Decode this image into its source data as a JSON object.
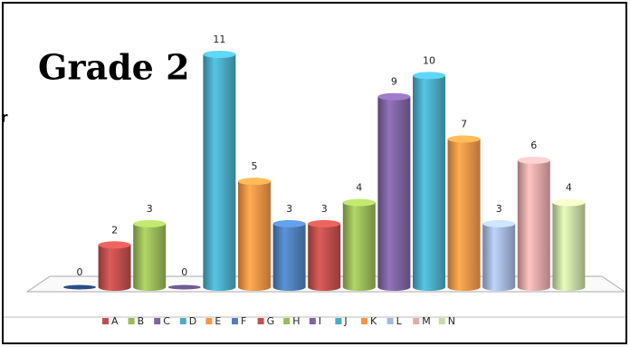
{
  "chart_data": {
    "type": "bar",
    "title": "Grade 2",
    "side_text": "ir",
    "categories": [
      null,
      "A",
      "B",
      "C",
      "D",
      "E",
      "F",
      "G",
      "H",
      "I",
      "J",
      "K",
      "L",
      "M",
      "N"
    ],
    "values": [
      0,
      2,
      3,
      0,
      11,
      5,
      3,
      3,
      4,
      9,
      10,
      7,
      3,
      6,
      4
    ],
    "colors": [
      "#2f5597",
      "#c0504d",
      "#9bbb59",
      "#8064a2",
      "#4bacc6",
      "#f79646",
      "#4f81bd",
      "#c0504d",
      "#9bbb59",
      "#8064a2",
      "#4bacc6",
      "#f79646",
      "#a5b8dc",
      "#e6a9a9",
      "#c9dca5"
    ]
  }
}
